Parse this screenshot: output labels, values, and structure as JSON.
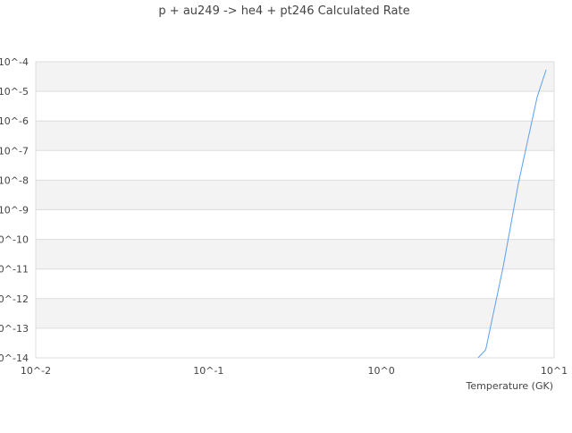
{
  "chart_data": {
    "type": "line",
    "title": "p + au249 -> he4 + pt246 Calculated Rate",
    "xlabel": "Temperature (GK)",
    "ylabel": "",
    "x_scale": "log",
    "y_scale": "log",
    "xlim": [
      0.01,
      10
    ],
    "ylim": [
      1e-14,
      0.0001
    ],
    "x_ticks": [
      "10^-2",
      "10^-1",
      "10^0",
      "10^1"
    ],
    "y_ticks": [
      "10^-4",
      "10^-5",
      "10^-6",
      "10^-7",
      "10^-8",
      "10^-9",
      "10^-10",
      "10^-11",
      "10^-12",
      "10^-13",
      "10^-14"
    ],
    "grid": true,
    "alternating_bands": true,
    "series": [
      {
        "color": "#5aa0f0",
        "x": [
          3.63,
          4.02,
          5.07,
          6.21,
          7.98,
          8.99
        ],
        "y": [
          1e-14,
          1.9e-14,
          1.2e-11,
          7.8e-09,
          6.6e-06,
          5.4e-05
        ]
      }
    ]
  }
}
